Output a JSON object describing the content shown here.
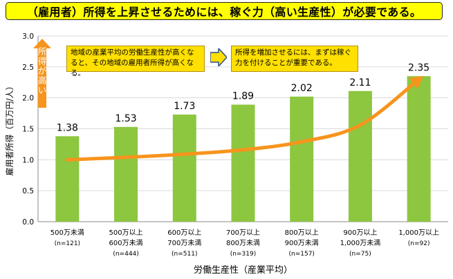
{
  "banner": {
    "title": "（雇用者）所得を上昇させるためには、稼ぐ力（高い生産性）が必要である。"
  },
  "notes": {
    "left": "地域の産業平均の労働生産性が高くなると、その地域の雇用者所得が高くなる。",
    "right": "所得を増加させるには、まずは稼ぐ力を付けることが重要である。",
    "up_arrow": "所得が高い"
  },
  "colors": {
    "bar": "#8dc63f",
    "trend": "#f7941d",
    "banner": "#ffff00",
    "note": "#ffe000"
  },
  "chart_data": {
    "type": "bar",
    "xlabel": "労働生産性（産業平均）",
    "ylabel": "雇用者所得（百万円/人）",
    "ylim": [
      0,
      3.0
    ],
    "yticks": [
      "0.0",
      "0.5",
      "1.0",
      "1.5",
      "2.0",
      "2.5",
      "3.0"
    ],
    "ytick_values": [
      0,
      0.5,
      1.0,
      1.5,
      2.0,
      2.5,
      3.0
    ],
    "grid": true,
    "categories": [
      {
        "line1": "500万未満",
        "line2": "",
        "n": "(n=121)"
      },
      {
        "line1": "500万以上",
        "line2": "600万未満",
        "n": "(n=444)"
      },
      {
        "line1": "600万以上",
        "line2": "700万未満",
        "n": "(n=511)"
      },
      {
        "line1": "700万以上",
        "line2": "800万未満",
        "n": "(n=319)"
      },
      {
        "line1": "800万以上",
        "line2": "900万未満",
        "n": "(n=157)"
      },
      {
        "line1": "900万以上",
        "line2": "1,000万未満",
        "n": "(n=75)"
      },
      {
        "line1": "1,000万以上",
        "line2": "",
        "n": "(n=92)"
      }
    ],
    "values": [
      1.38,
      1.53,
      1.73,
      1.89,
      2.02,
      2.11,
      2.35
    ],
    "value_labels": [
      "1.38",
      "1.53",
      "1.73",
      "1.89",
      "2.02",
      "2.11",
      "2.35"
    ],
    "trend": [
      1.0,
      1.04,
      1.09,
      1.16,
      1.29,
      1.56,
      2.3
    ]
  }
}
